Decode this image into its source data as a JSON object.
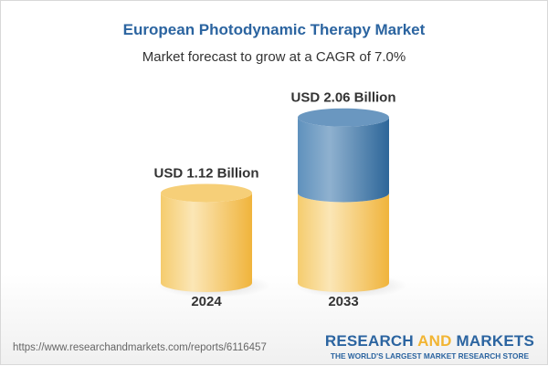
{
  "chart_data": {
    "type": "bar",
    "style": "3d-cylinder",
    "title": "European Photodynamic Therapy Market",
    "subtitle": "Market forecast to grow at a CAGR of 7.0%",
    "categories": [
      "2024",
      "2033"
    ],
    "values": [
      1.12,
      2.06
    ],
    "unit": "USD Billion",
    "data_labels": [
      "USD 1.12 Billion",
      "USD 2.06 Billion"
    ],
    "colors": {
      "base": "#f2c25c",
      "growth": "#4a80b0",
      "title": "#2b64a0"
    },
    "grid": false
  },
  "footer": {
    "url": "https://www.researchandmarkets.com/reports/6116457",
    "logo_part1": "RESEARCH ",
    "logo_part2": "AND",
    "logo_part3": " MARKETS",
    "logo_tagline": "THE WORLD'S LARGEST MARKET RESEARCH STORE"
  }
}
